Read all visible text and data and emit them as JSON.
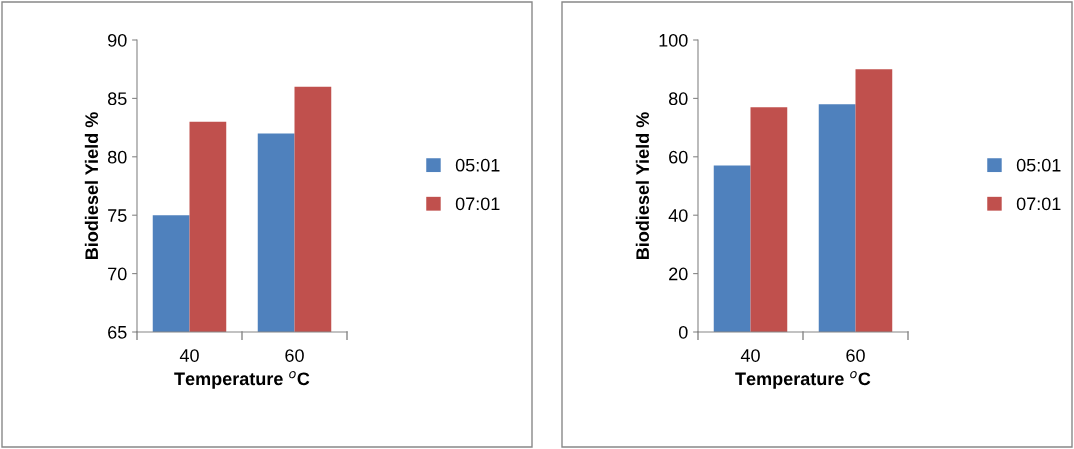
{
  "chart_data": [
    {
      "type": "bar",
      "categories": [
        "40",
        "60"
      ],
      "xlabel": "Temperature $^{o}$C",
      "ylabel": "Biodiesel Yield %",
      "ylim": [
        65,
        90
      ],
      "yticks": [
        65,
        70,
        75,
        80,
        85,
        90
      ],
      "legend": "right",
      "grid": false,
      "series": [
        {
          "name": "05:01",
          "color": "#4f81bd",
          "values": [
            75,
            82
          ]
        },
        {
          "name": "07:01",
          "color": "#c0504d",
          "values": [
            83,
            86
          ]
        }
      ]
    },
    {
      "type": "bar",
      "categories": [
        "40",
        "60"
      ],
      "xlabel": "Temperature $^{o}$C",
      "ylabel": "Biodiesel Yield %",
      "ylim": [
        0,
        100
      ],
      "yticks": [
        0,
        20,
        40,
        60,
        80,
        100
      ],
      "legend": "right",
      "grid": false,
      "series": [
        {
          "name": "05:01",
          "color": "#4f81bd",
          "values": [
            57,
            78
          ]
        },
        {
          "name": "07:01",
          "color": "#c0504d",
          "values": [
            77,
            90
          ]
        }
      ]
    }
  ]
}
